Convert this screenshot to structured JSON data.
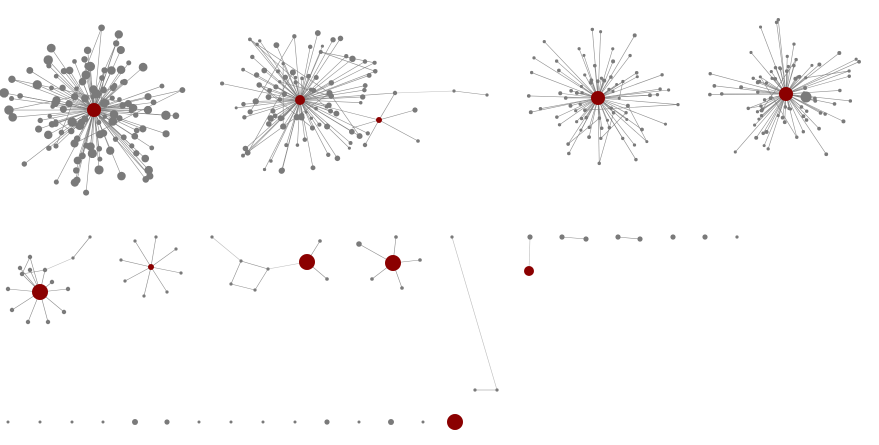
{
  "graph": {
    "background": "#ffffff",
    "node_color": "#7a7a7a",
    "hub_color": "#8b0000",
    "edge_color": "#7a7a7a",
    "components": [
      {
        "id": "star-1",
        "hub_highlighted": true,
        "leaf_count": 120
      },
      {
        "id": "star-2",
        "hub_highlighted": true,
        "leaf_count": 90,
        "secondary_hub": true
      },
      {
        "id": "star-3",
        "hub_highlighted": true,
        "leaf_count": 75
      },
      {
        "id": "star-4",
        "hub_highlighted": true,
        "leaf_count": 80
      },
      {
        "id": "small-star-1",
        "hub_highlighted": true,
        "leaf_count": 12
      },
      {
        "id": "small-star-2",
        "hub_highlighted": true,
        "leaf_count": 8
      },
      {
        "id": "square-component",
        "hub_highlighted": false,
        "leaf_count": 5
      },
      {
        "id": "triad-component",
        "hub_highlighted": true,
        "leaf_count": 3
      },
      {
        "id": "small-star-3",
        "hub_highlighted": true,
        "leaf_count": 6
      },
      {
        "id": "long-chain",
        "hub_highlighted": false,
        "leaf_count": 3
      },
      {
        "id": "pair-highlighted",
        "hub_highlighted": true,
        "leaf_count": 1
      },
      {
        "id": "pairs-and-isolates",
        "hub_highlighted": false,
        "leaf_count": 7
      },
      {
        "id": "isolates-row",
        "hub_highlighted": false,
        "leaf_count": 15
      }
    ]
  }
}
